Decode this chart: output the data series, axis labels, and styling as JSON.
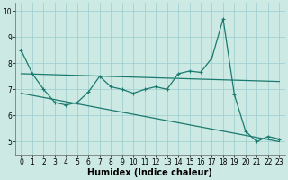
{
  "xlabel": "Humidex (Indice chaleur)",
  "ylabel": "",
  "bg_color": "#cce9e4",
  "grid_color": "#99cccc",
  "line_color": "#1a7a6e",
  "x_values": [
    0,
    1,
    2,
    3,
    4,
    5,
    6,
    7,
    8,
    9,
    10,
    11,
    12,
    13,
    14,
    15,
    16,
    17,
    18,
    19,
    20,
    21,
    22,
    23
  ],
  "main_y": [
    8.5,
    7.6,
    7.0,
    6.5,
    6.4,
    6.5,
    6.9,
    7.5,
    7.1,
    7.0,
    6.85,
    7.0,
    7.1,
    7.0,
    7.6,
    7.7,
    7.65,
    8.2,
    9.7,
    6.8,
    5.4,
    5.0,
    5.2,
    5.1
  ],
  "trend1_x": [
    0,
    23
  ],
  "trend1_y": [
    7.6,
    7.3
  ],
  "trend2_x": [
    0,
    23
  ],
  "trend2_y": [
    6.85,
    5.0
  ],
  "ylim": [
    4.5,
    10.3
  ],
  "xlim": [
    -0.5,
    23.5
  ],
  "yticks": [
    5,
    6,
    7,
    8,
    9,
    10
  ],
  "xticks": [
    0,
    1,
    2,
    3,
    4,
    5,
    6,
    7,
    8,
    9,
    10,
    11,
    12,
    13,
    14,
    15,
    16,
    17,
    18,
    19,
    20,
    21,
    22,
    23
  ],
  "tick_fontsize": 5.5,
  "xlabel_fontsize": 7,
  "marker_size": 2.5,
  "linewidth": 0.9
}
